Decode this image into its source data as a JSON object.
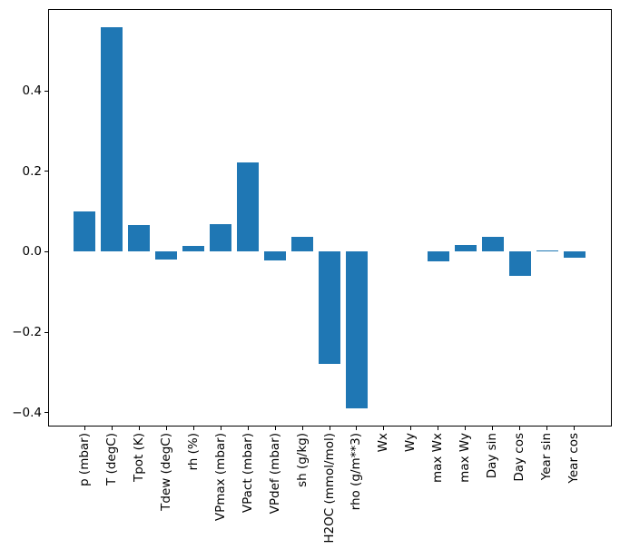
{
  "figure": {
    "background": "#ffffff",
    "bar_color": "#1f77b4",
    "spine_color": "#000000",
    "tick_color": "#000000",
    "text_color": "#000000"
  },
  "chart_data": {
    "type": "bar",
    "title": "",
    "xlabel": "",
    "ylabel": "",
    "grid": false,
    "legend": null,
    "categories": [
      "p (mbar)",
      "T (degC)",
      "Tpot (K)",
      "Tdew (degC)",
      "rh (%)",
      "VPmax (mbar)",
      "VPact (mbar)",
      "VPdef (mbar)",
      "sh (g/kg)",
      "H2OC (mmol/mol)",
      "rho (g/m**3)",
      "Wx",
      "Wy",
      "max Wx",
      "max Wy",
      "Day sin",
      "Day cos",
      "Year sin",
      "Year cos"
    ],
    "values": [
      0.1,
      0.557,
      0.066,
      -0.019,
      0.015,
      0.069,
      0.221,
      -0.022,
      0.036,
      -0.279,
      -0.39,
      0.0,
      0.0,
      -0.023,
      0.016,
      0.036,
      -0.059,
      0.003,
      -0.015
    ],
    "bar_width": 0.8,
    "xlim": [
      -1.34,
      19.34
    ],
    "ylim": [
      -0.432,
      0.603
    ],
    "yticks": {
      "values": [
        -0.4,
        -0.2,
        0.0,
        0.2,
        0.4
      ],
      "labels": [
        "−0.4",
        "−0.2",
        "0.0",
        "0.2",
        "0.4"
      ]
    }
  }
}
